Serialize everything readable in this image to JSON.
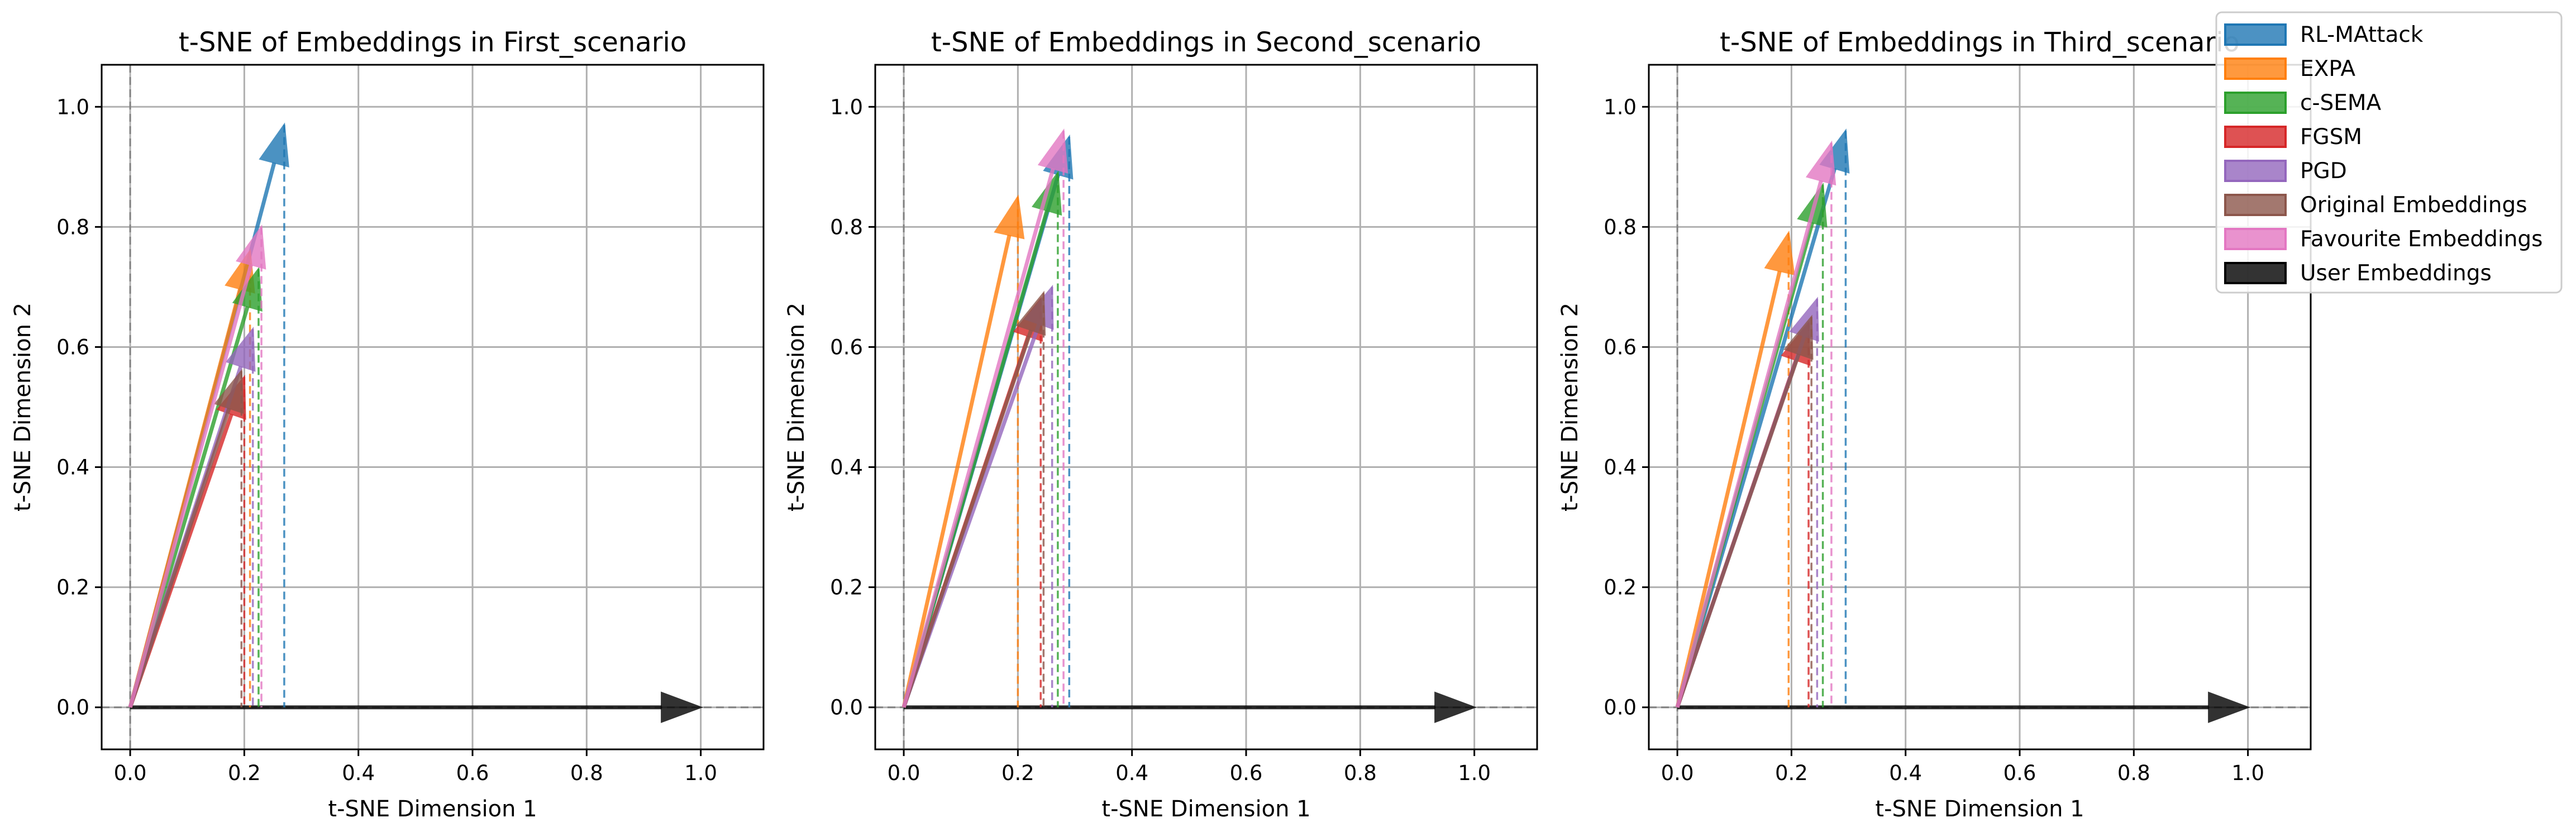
{
  "chart_data": {
    "type": "quiver",
    "legend": {
      "placement": "top-right",
      "entries": [
        {
          "label": "RL-MAttack",
          "color": "#1f77b4"
        },
        {
          "label": "EXPA",
          "color": "#ff7f0e"
        },
        {
          "label": "c-SEMA",
          "color": "#2ca02c"
        },
        {
          "label": "FGSM",
          "color": "#d62728"
        },
        {
          "label": "PGD",
          "color": "#9467bd"
        },
        {
          "label": "Original Embeddings",
          "color": "#8c564b"
        },
        {
          "label": "Favourite Embeddings",
          "color": "#e377c2"
        },
        {
          "label": "User Embeddings",
          "color": "#000000"
        }
      ]
    },
    "subplots": [
      {
        "title": "t-SNE of Embeddings in First_scenario",
        "xlabel": "t-SNE Dimension 1",
        "ylabel": "t-SNE Dimension 2",
        "xlim": [
          -0.05,
          1.11
        ],
        "ylim": [
          -0.07,
          1.07
        ],
        "xticks": [
          "0.0",
          "0.2",
          "0.4",
          "0.6",
          "0.8",
          "1.0"
        ],
        "yticks": [
          "0.0",
          "0.2",
          "0.4",
          "0.6",
          "0.8",
          "1.0"
        ],
        "grid": true,
        "vectors": [
          {
            "series": "RL-MAttack",
            "x": 0.27,
            "y": 0.97
          },
          {
            "series": "EXPA",
            "x": 0.21,
            "y": 0.76
          },
          {
            "series": "c-SEMA",
            "x": 0.225,
            "y": 0.73
          },
          {
            "series": "FGSM",
            "x": 0.2,
            "y": 0.55
          },
          {
            "series": "PGD",
            "x": 0.215,
            "y": 0.63
          },
          {
            "series": "Original Embeddings",
            "x": 0.195,
            "y": 0.56
          },
          {
            "series": "Favourite Embeddings",
            "x": 0.23,
            "y": 0.8
          },
          {
            "series": "User Embeddings",
            "x": 1.0,
            "y": 0.0
          }
        ]
      },
      {
        "title": "t-SNE of Embeddings in Second_scenario",
        "xlabel": "t-SNE Dimension 1",
        "ylabel": "t-SNE Dimension 2",
        "xlim": [
          -0.05,
          1.11
        ],
        "ylim": [
          -0.07,
          1.07
        ],
        "xticks": [
          "0.0",
          "0.2",
          "0.4",
          "0.6",
          "0.8",
          "1.0"
        ],
        "yticks": [
          "0.0",
          "0.2",
          "0.4",
          "0.6",
          "0.8",
          "1.0"
        ],
        "grid": true,
        "vectors": [
          {
            "series": "RL-MAttack",
            "x": 0.29,
            "y": 0.95
          },
          {
            "series": "EXPA",
            "x": 0.2,
            "y": 0.85
          },
          {
            "series": "c-SEMA",
            "x": 0.27,
            "y": 0.89
          },
          {
            "series": "FGSM",
            "x": 0.24,
            "y": 0.68
          },
          {
            "series": "PGD",
            "x": 0.26,
            "y": 0.7
          },
          {
            "series": "Original Embeddings",
            "x": 0.245,
            "y": 0.69
          },
          {
            "series": "Favourite Embeddings",
            "x": 0.28,
            "y": 0.96
          },
          {
            "series": "User Embeddings",
            "x": 1.0,
            "y": 0.0
          }
        ]
      },
      {
        "title": "t-SNE of Embeddings in Third_scenario",
        "xlabel": "t-SNE Dimension 1",
        "ylabel": "t-SNE Dimension 2",
        "xlim": [
          -0.05,
          1.11
        ],
        "ylim": [
          -0.07,
          1.07
        ],
        "xticks": [
          "0.0",
          "0.2",
          "0.4",
          "0.6",
          "0.8",
          "1.0"
        ],
        "yticks": [
          "0.0",
          "0.2",
          "0.4",
          "0.6",
          "0.8",
          "1.0"
        ],
        "grid": true,
        "vectors": [
          {
            "series": "RL-MAttack",
            "x": 0.295,
            "y": 0.96
          },
          {
            "series": "EXPA",
            "x": 0.195,
            "y": 0.79
          },
          {
            "series": "c-SEMA",
            "x": 0.255,
            "y": 0.87
          },
          {
            "series": "FGSM",
            "x": 0.23,
            "y": 0.64
          },
          {
            "series": "PGD",
            "x": 0.245,
            "y": 0.68
          },
          {
            "series": "Original Embeddings",
            "x": 0.235,
            "y": 0.65
          },
          {
            "series": "Favourite Embeddings",
            "x": 0.27,
            "y": 0.94
          },
          {
            "series": "User Embeddings",
            "x": 1.0,
            "y": 0.0
          }
        ]
      }
    ]
  }
}
